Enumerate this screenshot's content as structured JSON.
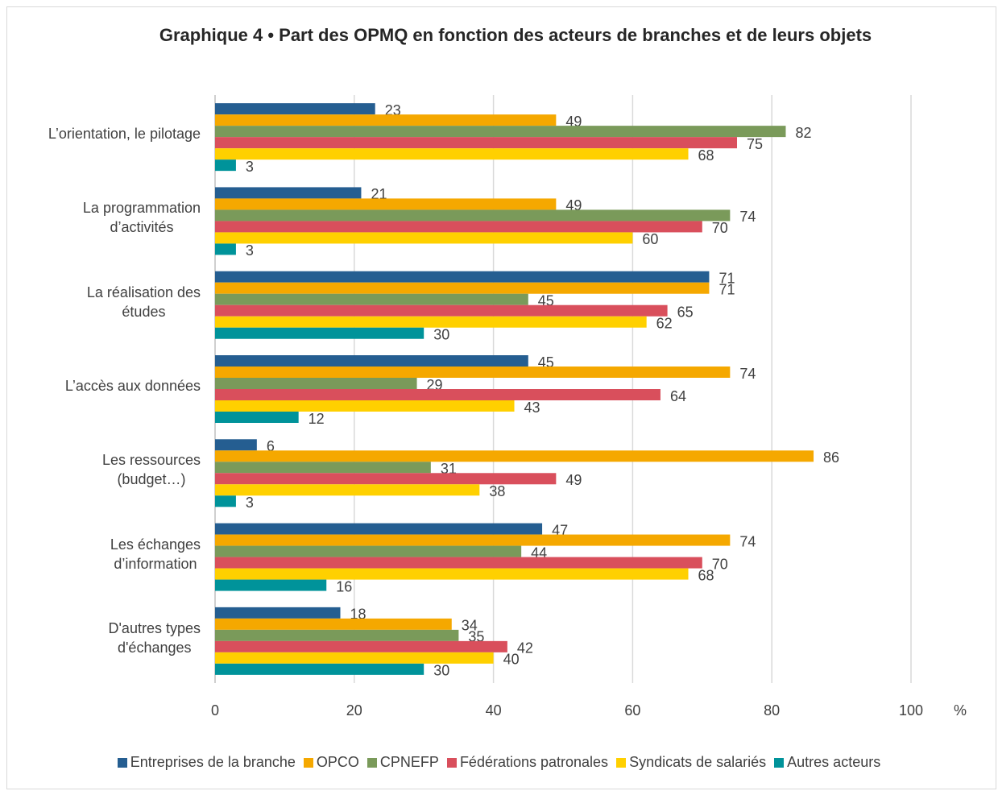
{
  "chart_data": {
    "type": "bar",
    "orientation": "horizontal",
    "title": "Graphique 4 • Part des OPMQ en fonction des acteurs de branches et de leurs objets",
    "x_label": "%",
    "categories": [
      "L’orientation, le pilotage",
      "La programmation\nd’activités",
      "La réalisation des\nétudes",
      "L’accès aux données",
      "Les ressources\n(budget…)",
      "Les échanges\nd’information",
      "D'autres types\nd'échanges"
    ],
    "series": [
      {
        "name": "Entreprises de la branche",
        "color": "#255e91",
        "values": [
          23,
          21,
          71,
          45,
          6,
          47,
          18
        ]
      },
      {
        "name": "OPCO",
        "color": "#f5a800",
        "values": [
          49,
          49,
          71,
          74,
          86,
          74,
          34
        ]
      },
      {
        "name": "CPNEFP",
        "color": "#7a9a5a",
        "values": [
          82,
          74,
          45,
          29,
          31,
          44,
          35
        ]
      },
      {
        "name": "Fédérations patronales",
        "color": "#d94f5c",
        "values": [
          75,
          70,
          65,
          64,
          49,
          70,
          42
        ]
      },
      {
        "name": "Syndicats de salariés",
        "color": "#ffd000",
        "values": [
          68,
          60,
          62,
          43,
          38,
          68,
          40
        ]
      },
      {
        "name": "Autres acteurs",
        "color": "#00939a",
        "values": [
          3,
          3,
          30,
          12,
          3,
          16,
          30
        ]
      }
    ],
    "xlim": [
      0,
      100
    ],
    "xticks": [
      0,
      20,
      40,
      60,
      80,
      100
    ],
    "grid": true,
    "legend": "bottom"
  }
}
